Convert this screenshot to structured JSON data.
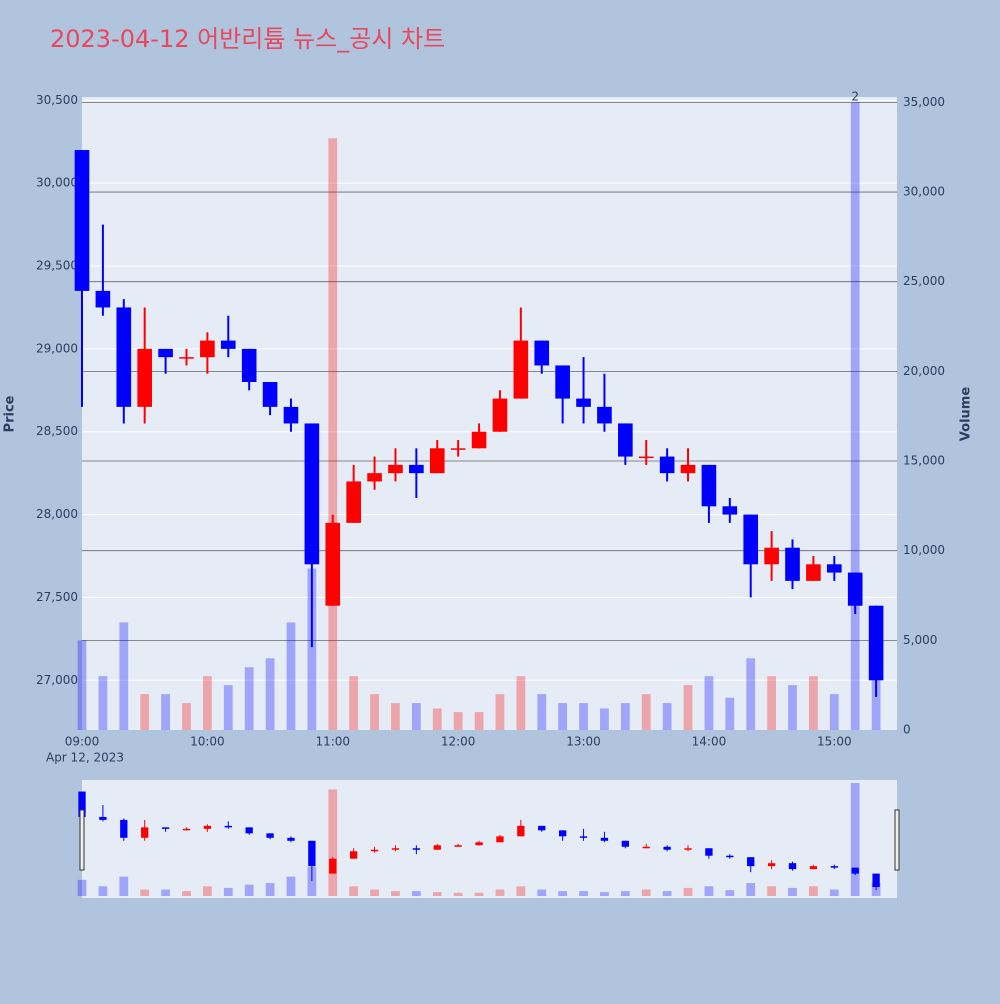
{
  "chart_data": {
    "type": "candlestick",
    "title": "2023-04-12 어반리튬 뉴스_공시 차트",
    "y_title": "Price",
    "y2_title": "Volume",
    "x_date_label": "Apr 12, 2023",
    "x": [
      "09:00",
      "09:10",
      "09:20",
      "09:30",
      "09:40",
      "09:50",
      "10:00",
      "10:10",
      "10:20",
      "10:30",
      "10:40",
      "10:50",
      "11:00",
      "11:10",
      "11:20",
      "11:30",
      "11:40",
      "11:50",
      "12:00",
      "12:10",
      "12:20",
      "12:30",
      "12:40",
      "12:50",
      "13:00",
      "13:10",
      "13:20",
      "13:30",
      "13:40",
      "13:50",
      "14:00",
      "14:10",
      "14:20",
      "14:30",
      "14:40",
      "14:50",
      "15:00",
      "15:10",
      "15:20"
    ],
    "open": [
      30200,
      29350,
      29250,
      28650,
      29000,
      28950,
      28950,
      29050,
      29000,
      28800,
      28650,
      28550,
      27450,
      27950,
      28200,
      28250,
      28300,
      28250,
      28400,
      28400,
      28500,
      28700,
      29050,
      28900,
      28700,
      28650,
      28550,
      28350,
      28350,
      28250,
      28300,
      28050,
      28000,
      27700,
      27800,
      27600,
      27700,
      27650,
      27450
    ],
    "high": [
      30200,
      29750,
      29300,
      29250,
      29000,
      29000,
      29100,
      29200,
      29000,
      28800,
      28700,
      28550,
      28000,
      28300,
      28350,
      28400,
      28400,
      28450,
      28450,
      28550,
      28750,
      29250,
      29050,
      28900,
      28950,
      28850,
      28550,
      28450,
      28400,
      28400,
      28300,
      28100,
      28000,
      27900,
      27850,
      27750,
      27750,
      27650,
      27450
    ],
    "low": [
      28650,
      29200,
      28550,
      28550,
      28850,
      28900,
      28850,
      28950,
      28750,
      28600,
      28500,
      27200,
      27450,
      27950,
      28150,
      28200,
      28100,
      28250,
      28350,
      28400,
      28500,
      28700,
      28850,
      28550,
      28550,
      28500,
      28300,
      28300,
      28200,
      28200,
      27950,
      27950,
      27500,
      27600,
      27550,
      27600,
      27600,
      27400,
      26900
    ],
    "close": [
      29350,
      29250,
      28650,
      29000,
      28950,
      28950,
      29050,
      29000,
      28800,
      28650,
      28550,
      27700,
      27950,
      28200,
      28250,
      28300,
      28250,
      28400,
      28400,
      28500,
      28700,
      29050,
      28900,
      28700,
      28650,
      28550,
      28350,
      28350,
      28250,
      28300,
      28050,
      28000,
      27700,
      27800,
      27600,
      27700,
      27650,
      27450,
      27000
    ],
    "volume": [
      5000,
      3000,
      6000,
      2000,
      2000,
      1500,
      3000,
      2500,
      3500,
      4000,
      6000,
      9000,
      33000,
      3000,
      2000,
      1500,
      1500,
      1200,
      1000,
      1000,
      2000,
      3000,
      2000,
      1500,
      1500,
      1200,
      1500,
      2000,
      1500,
      2500,
      3000,
      1800,
      4000,
      3000,
      2500,
      3000,
      2000,
      35000,
      4000
    ],
    "up_color": "#ff0000",
    "down_color": "#0000ff",
    "annotation": "2",
    "xlim": [
      "09:00",
      "15:30"
    ],
    "xticks": [
      "09:00",
      "10:00",
      "11:00",
      "12:00",
      "13:00",
      "14:00",
      "15:00"
    ],
    "ylim": [
      26700,
      30520
    ],
    "yticks": [
      {
        "value": 27000,
        "label": "27,000"
      },
      {
        "value": 27500,
        "label": "27,500"
      },
      {
        "value": 28000,
        "label": "28,000"
      },
      {
        "value": 28500,
        "label": "28,500"
      },
      {
        "value": 29000,
        "label": "29,000"
      },
      {
        "value": 29500,
        "label": "29,500"
      },
      {
        "value": 30000,
        "label": "30,000"
      },
      {
        "value": 30500,
        "label": "30,500"
      }
    ],
    "y2lim": [
      0,
      35300
    ],
    "y2ticks": [
      0,
      {
        "value": 5000,
        "label": "5,000"
      },
      {
        "value": 10000,
        "label": "10,000"
      },
      {
        "value": 15000,
        "label": "15,000"
      },
      {
        "value": 20000,
        "label": "20,000"
      },
      {
        "value": 25000,
        "label": "25,000"
      },
      {
        "value": 30000,
        "label": "30,000"
      },
      {
        "value": 35000,
        "label": "35,000"
      }
    ],
    "grid": true
  }
}
